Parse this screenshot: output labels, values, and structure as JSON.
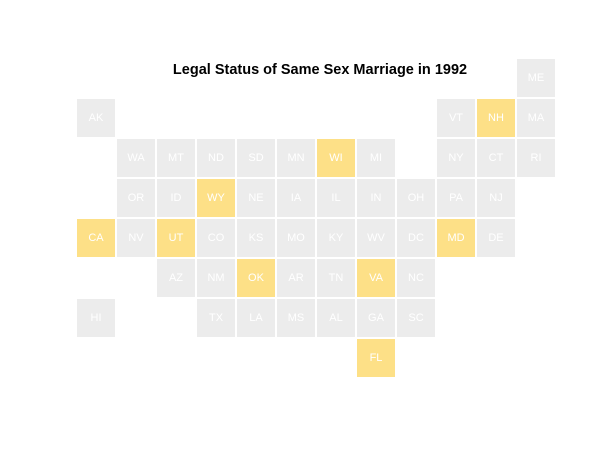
{
  "title": "Legal Status of Same Sex Marriage in 1992",
  "colors": {
    "default": "#ececec",
    "highlight": "#fde087"
  },
  "states": [
    {
      "abbr": "ME",
      "row": 0,
      "col": 11,
      "highlight": false
    },
    {
      "abbr": "AK",
      "row": 1,
      "col": 0,
      "highlight": false
    },
    {
      "abbr": "VT",
      "row": 1,
      "col": 9,
      "highlight": false
    },
    {
      "abbr": "NH",
      "row": 1,
      "col": 10,
      "highlight": true
    },
    {
      "abbr": "MA",
      "row": 1,
      "col": 11,
      "highlight": false
    },
    {
      "abbr": "WA",
      "row": 2,
      "col": 1,
      "highlight": false
    },
    {
      "abbr": "MT",
      "row": 2,
      "col": 2,
      "highlight": false
    },
    {
      "abbr": "ND",
      "row": 2,
      "col": 3,
      "highlight": false
    },
    {
      "abbr": "SD",
      "row": 2,
      "col": 4,
      "highlight": false
    },
    {
      "abbr": "MN",
      "row": 2,
      "col": 5,
      "highlight": false
    },
    {
      "abbr": "WI",
      "row": 2,
      "col": 6,
      "highlight": true
    },
    {
      "abbr": "MI",
      "row": 2,
      "col": 7,
      "highlight": false
    },
    {
      "abbr": "NY",
      "row": 2,
      "col": 9,
      "highlight": false
    },
    {
      "abbr": "CT",
      "row": 2,
      "col": 10,
      "highlight": false
    },
    {
      "abbr": "RI",
      "row": 2,
      "col": 11,
      "highlight": false
    },
    {
      "abbr": "OR",
      "row": 3,
      "col": 1,
      "highlight": false
    },
    {
      "abbr": "ID",
      "row": 3,
      "col": 2,
      "highlight": false
    },
    {
      "abbr": "WY",
      "row": 3,
      "col": 3,
      "highlight": true
    },
    {
      "abbr": "NE",
      "row": 3,
      "col": 4,
      "highlight": false
    },
    {
      "abbr": "IA",
      "row": 3,
      "col": 5,
      "highlight": false
    },
    {
      "abbr": "IL",
      "row": 3,
      "col": 6,
      "highlight": false
    },
    {
      "abbr": "IN",
      "row": 3,
      "col": 7,
      "highlight": false
    },
    {
      "abbr": "OH",
      "row": 3,
      "col": 8,
      "highlight": false
    },
    {
      "abbr": "PA",
      "row": 3,
      "col": 9,
      "highlight": false
    },
    {
      "abbr": "NJ",
      "row": 3,
      "col": 10,
      "highlight": false
    },
    {
      "abbr": "CA",
      "row": 4,
      "col": 0,
      "highlight": true
    },
    {
      "abbr": "NV",
      "row": 4,
      "col": 1,
      "highlight": false
    },
    {
      "abbr": "UT",
      "row": 4,
      "col": 2,
      "highlight": true
    },
    {
      "abbr": "CO",
      "row": 4,
      "col": 3,
      "highlight": false
    },
    {
      "abbr": "KS",
      "row": 4,
      "col": 4,
      "highlight": false
    },
    {
      "abbr": "MO",
      "row": 4,
      "col": 5,
      "highlight": false
    },
    {
      "abbr": "KY",
      "row": 4,
      "col": 6,
      "highlight": false
    },
    {
      "abbr": "WV",
      "row": 4,
      "col": 7,
      "highlight": false
    },
    {
      "abbr": "DC",
      "row": 4,
      "col": 8,
      "highlight": false
    },
    {
      "abbr": "MD",
      "row": 4,
      "col": 9,
      "highlight": true
    },
    {
      "abbr": "DE",
      "row": 4,
      "col": 10,
      "highlight": false
    },
    {
      "abbr": "AZ",
      "row": 5,
      "col": 2,
      "highlight": false
    },
    {
      "abbr": "NM",
      "row": 5,
      "col": 3,
      "highlight": false
    },
    {
      "abbr": "OK",
      "row": 5,
      "col": 4,
      "highlight": true
    },
    {
      "abbr": "AR",
      "row": 5,
      "col": 5,
      "highlight": false
    },
    {
      "abbr": "TN",
      "row": 5,
      "col": 6,
      "highlight": false
    },
    {
      "abbr": "VA",
      "row": 5,
      "col": 7,
      "highlight": true
    },
    {
      "abbr": "NC",
      "row": 5,
      "col": 8,
      "highlight": false
    },
    {
      "abbr": "HI",
      "row": 6,
      "col": 0,
      "highlight": false
    },
    {
      "abbr": "TX",
      "row": 6,
      "col": 3,
      "highlight": false
    },
    {
      "abbr": "LA",
      "row": 6,
      "col": 4,
      "highlight": false
    },
    {
      "abbr": "MS",
      "row": 6,
      "col": 5,
      "highlight": false
    },
    {
      "abbr": "AL",
      "row": 6,
      "col": 6,
      "highlight": false
    },
    {
      "abbr": "GA",
      "row": 6,
      "col": 7,
      "highlight": false
    },
    {
      "abbr": "SC",
      "row": 6,
      "col": 8,
      "highlight": false
    },
    {
      "abbr": "FL",
      "row": 7,
      "col": 7,
      "highlight": true
    }
  ]
}
